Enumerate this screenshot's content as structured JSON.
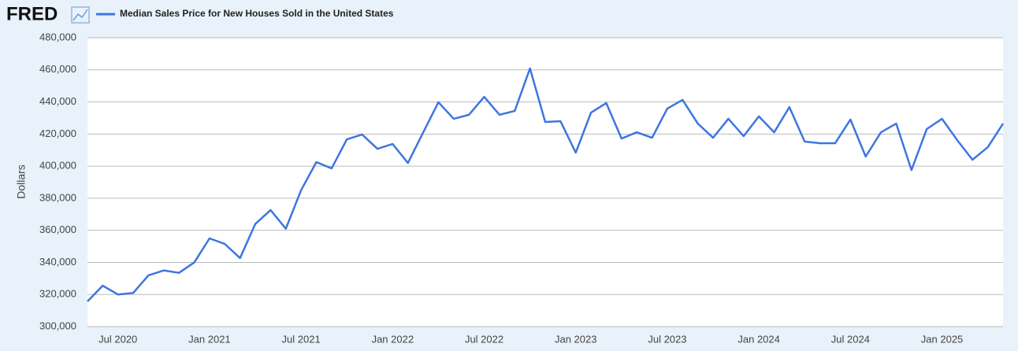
{
  "logo": "FRED",
  "chart_data": {
    "type": "line",
    "y_label": "Dollars",
    "categories": [
      null,
      null,
      "Jul 2020",
      null,
      null,
      null,
      null,
      null,
      "Jan 2021",
      null,
      null,
      null,
      null,
      null,
      "Jul 2021",
      null,
      null,
      null,
      null,
      null,
      "Jan 2022",
      null,
      null,
      null,
      null,
      null,
      "Jul 2022",
      null,
      null,
      null,
      null,
      null,
      "Jan 2023",
      null,
      null,
      null,
      null,
      null,
      "Jul 2023",
      null,
      null,
      null,
      null,
      null,
      "Jan 2024",
      null,
      null,
      null,
      null,
      null,
      "Jul 2024",
      null,
      null,
      null,
      null,
      null,
      "Jan 2025",
      null,
      null,
      null,
      null
    ],
    "series": [
      {
        "name": "Median Sales Price for New Houses Sold in the United States",
        "color": "#3d76e0",
        "values": [
          315700,
          325500,
          320000,
          321000,
          332000,
          335000,
          333500,
          340000,
          355000,
          351500,
          342700,
          364000,
          372600,
          361000,
          385000,
          402500,
          398600,
          416700,
          419700,
          410800,
          413800,
          402000,
          421000,
          439800,
          429500,
          432000,
          443200,
          432000,
          434400,
          460900,
          427500,
          428000,
          408400,
          433400,
          439300,
          417200,
          421100,
          417700,
          435900,
          441300,
          426500,
          417700,
          429500,
          418700,
          431000,
          421100,
          436800,
          415300,
          414300,
          414300,
          429000,
          406000,
          421100,
          426500,
          397600,
          423100,
          429500,
          416200,
          404000,
          411800,
          426500
        ]
      }
    ],
    "ylim": [
      300000,
      480000
    ],
    "yticks": [
      {
        "value": 300000,
        "label": "300,000"
      },
      {
        "value": 320000,
        "label": "320,000"
      },
      {
        "value": 340000,
        "label": "340,000"
      },
      {
        "value": 360000,
        "label": "360,000"
      },
      {
        "value": 380000,
        "label": "380,000"
      },
      {
        "value": 400000,
        "label": "400,000"
      },
      {
        "value": 420000,
        "label": "420,000"
      },
      {
        "value": 440000,
        "label": "440,000"
      },
      {
        "value": 460000,
        "label": "460,000"
      },
      {
        "value": 480000,
        "label": "480,000"
      }
    ],
    "grid": true
  }
}
